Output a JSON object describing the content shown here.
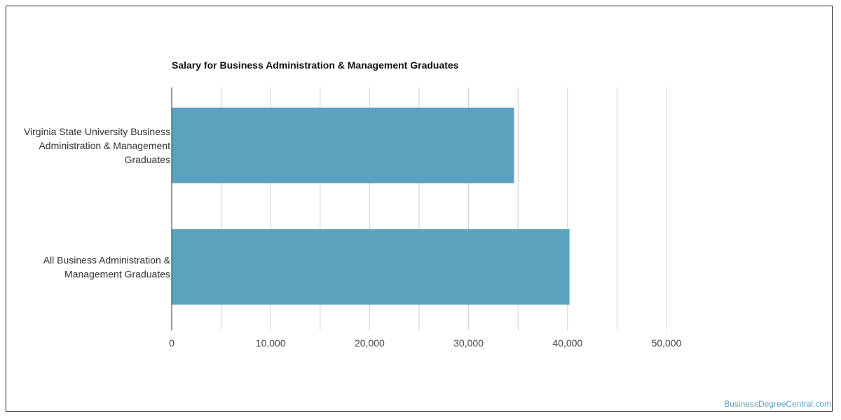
{
  "chart_data": {
    "type": "bar",
    "orientation": "horizontal",
    "title": "Salary for Business Administration & Management Graduates",
    "categories": [
      [
        "Virginia State University Business",
        "Administration & Management",
        "Graduates"
      ],
      [
        "All Business Administration &",
        "Management Graduates"
      ]
    ],
    "values": [
      34600,
      40200
    ],
    "xlim": [
      0,
      55000
    ],
    "x_ticks": [
      0,
      10000,
      20000,
      30000,
      40000,
      50000
    ],
    "x_tick_labels": [
      "0",
      "10,000",
      "20,000",
      "30,000",
      "40,000",
      "50,000"
    ],
    "grid": true,
    "bar_color": "#5ba2bf",
    "grid_color": "#d0d0d0"
  },
  "watermark": "BusinessDegreeCentral.com"
}
